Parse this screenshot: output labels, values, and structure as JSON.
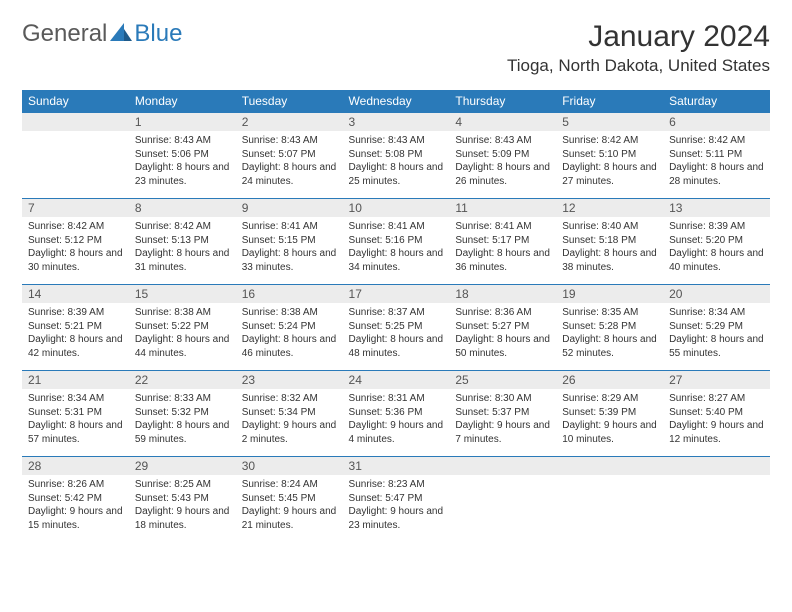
{
  "brand": {
    "general": "General",
    "blue": "Blue"
  },
  "title": "January 2024",
  "location": "Tioga, North Dakota, United States",
  "colors": {
    "header_bg": "#2a7ab9",
    "header_text": "#ffffff",
    "daynum_bg": "#ececec",
    "border": "#2a7ab9",
    "body_text": "#333333"
  },
  "day_headers": [
    "Sunday",
    "Monday",
    "Tuesday",
    "Wednesday",
    "Thursday",
    "Friday",
    "Saturday"
  ],
  "weeks": [
    [
      null,
      {
        "n": "1",
        "sr": "8:43 AM",
        "ss": "5:06 PM",
        "dl": "8 hours and 23 minutes."
      },
      {
        "n": "2",
        "sr": "8:43 AM",
        "ss": "5:07 PM",
        "dl": "8 hours and 24 minutes."
      },
      {
        "n": "3",
        "sr": "8:43 AM",
        "ss": "5:08 PM",
        "dl": "8 hours and 25 minutes."
      },
      {
        "n": "4",
        "sr": "8:43 AM",
        "ss": "5:09 PM",
        "dl": "8 hours and 26 minutes."
      },
      {
        "n": "5",
        "sr": "8:42 AM",
        "ss": "5:10 PM",
        "dl": "8 hours and 27 minutes."
      },
      {
        "n": "6",
        "sr": "8:42 AM",
        "ss": "5:11 PM",
        "dl": "8 hours and 28 minutes."
      }
    ],
    [
      {
        "n": "7",
        "sr": "8:42 AM",
        "ss": "5:12 PM",
        "dl": "8 hours and 30 minutes."
      },
      {
        "n": "8",
        "sr": "8:42 AM",
        "ss": "5:13 PM",
        "dl": "8 hours and 31 minutes."
      },
      {
        "n": "9",
        "sr": "8:41 AM",
        "ss": "5:15 PM",
        "dl": "8 hours and 33 minutes."
      },
      {
        "n": "10",
        "sr": "8:41 AM",
        "ss": "5:16 PM",
        "dl": "8 hours and 34 minutes."
      },
      {
        "n": "11",
        "sr": "8:41 AM",
        "ss": "5:17 PM",
        "dl": "8 hours and 36 minutes."
      },
      {
        "n": "12",
        "sr": "8:40 AM",
        "ss": "5:18 PM",
        "dl": "8 hours and 38 minutes."
      },
      {
        "n": "13",
        "sr": "8:39 AM",
        "ss": "5:20 PM",
        "dl": "8 hours and 40 minutes."
      }
    ],
    [
      {
        "n": "14",
        "sr": "8:39 AM",
        "ss": "5:21 PM",
        "dl": "8 hours and 42 minutes."
      },
      {
        "n": "15",
        "sr": "8:38 AM",
        "ss": "5:22 PM",
        "dl": "8 hours and 44 minutes."
      },
      {
        "n": "16",
        "sr": "8:38 AM",
        "ss": "5:24 PM",
        "dl": "8 hours and 46 minutes."
      },
      {
        "n": "17",
        "sr": "8:37 AM",
        "ss": "5:25 PM",
        "dl": "8 hours and 48 minutes."
      },
      {
        "n": "18",
        "sr": "8:36 AM",
        "ss": "5:27 PM",
        "dl": "8 hours and 50 minutes."
      },
      {
        "n": "19",
        "sr": "8:35 AM",
        "ss": "5:28 PM",
        "dl": "8 hours and 52 minutes."
      },
      {
        "n": "20",
        "sr": "8:34 AM",
        "ss": "5:29 PM",
        "dl": "8 hours and 55 minutes."
      }
    ],
    [
      {
        "n": "21",
        "sr": "8:34 AM",
        "ss": "5:31 PM",
        "dl": "8 hours and 57 minutes."
      },
      {
        "n": "22",
        "sr": "8:33 AM",
        "ss": "5:32 PM",
        "dl": "8 hours and 59 minutes."
      },
      {
        "n": "23",
        "sr": "8:32 AM",
        "ss": "5:34 PM",
        "dl": "9 hours and 2 minutes."
      },
      {
        "n": "24",
        "sr": "8:31 AM",
        "ss": "5:36 PM",
        "dl": "9 hours and 4 minutes."
      },
      {
        "n": "25",
        "sr": "8:30 AM",
        "ss": "5:37 PM",
        "dl": "9 hours and 7 minutes."
      },
      {
        "n": "26",
        "sr": "8:29 AM",
        "ss": "5:39 PM",
        "dl": "9 hours and 10 minutes."
      },
      {
        "n": "27",
        "sr": "8:27 AM",
        "ss": "5:40 PM",
        "dl": "9 hours and 12 minutes."
      }
    ],
    [
      {
        "n": "28",
        "sr": "8:26 AM",
        "ss": "5:42 PM",
        "dl": "9 hours and 15 minutes."
      },
      {
        "n": "29",
        "sr": "8:25 AM",
        "ss": "5:43 PM",
        "dl": "9 hours and 18 minutes."
      },
      {
        "n": "30",
        "sr": "8:24 AM",
        "ss": "5:45 PM",
        "dl": "9 hours and 21 minutes."
      },
      {
        "n": "31",
        "sr": "8:23 AM",
        "ss": "5:47 PM",
        "dl": "9 hours and 23 minutes."
      },
      null,
      null,
      null
    ]
  ],
  "labels": {
    "sunrise": "Sunrise:",
    "sunset": "Sunset:",
    "daylight": "Daylight:"
  }
}
